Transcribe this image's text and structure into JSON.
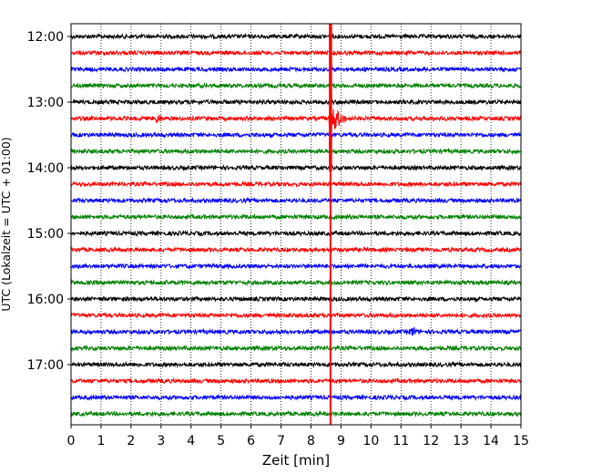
{
  "chart_data": {
    "type": "line",
    "title": "",
    "xlabel": "Zeit  [min]",
    "ylabel": "UTC (Lokalzeit = UTC + 01:00)",
    "xlim": [
      0,
      15
    ],
    "x_ticks": [
      0,
      1,
      2,
      3,
      4,
      5,
      6,
      7,
      8,
      9,
      10,
      11,
      12,
      13,
      14,
      15
    ],
    "x_grid": "dotted",
    "y_ticks": [
      "12:00",
      "13:00",
      "14:00",
      "15:00",
      "16:00",
      "17:00"
    ],
    "trace_interval_minutes": 15,
    "first_trace": "12:00",
    "trace_colors": [
      "#000000",
      "#ff0000",
      "#0000ff",
      "#008000"
    ],
    "traces": [
      {
        "start": "12:00",
        "color": "#000000"
      },
      {
        "start": "12:15",
        "color": "#ff0000"
      },
      {
        "start": "12:30",
        "color": "#0000ff"
      },
      {
        "start": "12:45",
        "color": "#008000"
      },
      {
        "start": "13:00",
        "color": "#000000"
      },
      {
        "start": "13:15",
        "color": "#ff0000"
      },
      {
        "start": "13:30",
        "color": "#0000ff"
      },
      {
        "start": "13:45",
        "color": "#008000"
      },
      {
        "start": "14:00",
        "color": "#000000"
      },
      {
        "start": "14:15",
        "color": "#ff0000"
      },
      {
        "start": "14:30",
        "color": "#0000ff"
      },
      {
        "start": "14:45",
        "color": "#008000"
      },
      {
        "start": "15:00",
        "color": "#000000"
      },
      {
        "start": "15:15",
        "color": "#ff0000"
      },
      {
        "start": "15:30",
        "color": "#0000ff"
      },
      {
        "start": "15:45",
        "color": "#008000"
      },
      {
        "start": "16:00",
        "color": "#000000"
      },
      {
        "start": "16:15",
        "color": "#ff0000"
      },
      {
        "start": "16:30",
        "color": "#0000ff"
      },
      {
        "start": "16:45",
        "color": "#008000"
      },
      {
        "start": "17:00",
        "color": "#000000"
      },
      {
        "start": "17:15",
        "color": "#ff0000"
      },
      {
        "start": "17:30",
        "color": "#0000ff"
      },
      {
        "start": "17:45",
        "color": "#008000"
      }
    ],
    "events": [
      {
        "trace_start": "13:15",
        "x_min": 8.75,
        "type": "large",
        "color": "#ff0000"
      },
      {
        "trace_start": "13:15",
        "x_min": 2.9,
        "type": "small",
        "color": "#ff0000"
      },
      {
        "trace_start": "16:30",
        "x_min": 11.4,
        "type": "small",
        "color": "#0000ff"
      }
    ],
    "marker_line": {
      "x_min": 8.65,
      "color": "#ff0000"
    }
  }
}
